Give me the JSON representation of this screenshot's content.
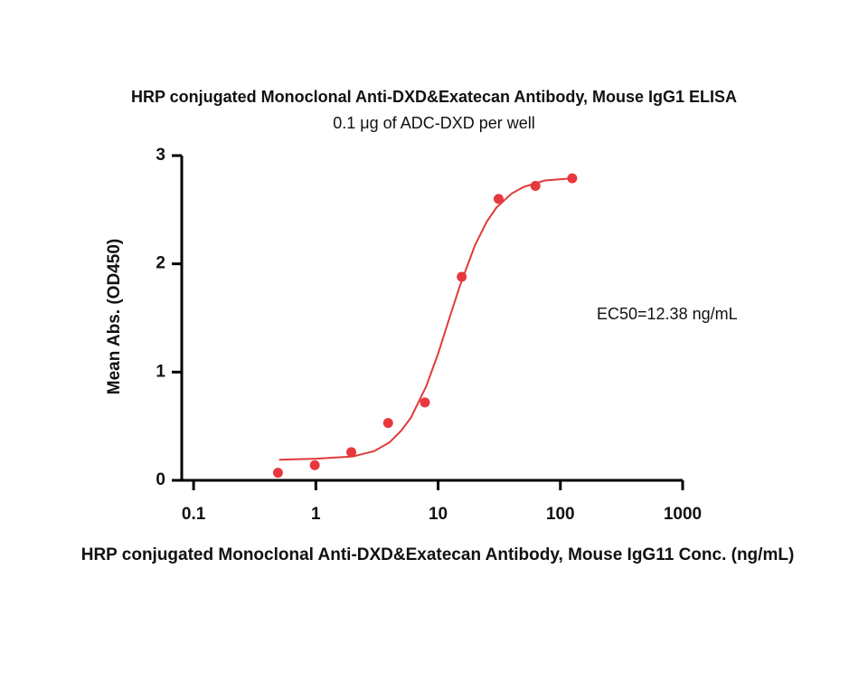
{
  "chart_data": {
    "type": "scatter",
    "title": "HRP conjugated Monoclonal Anti-DXD&Exatecan Antibody, Mouse IgG1 ELISA",
    "subtitle": "0.1 μg of ADC-DXD per well",
    "x_label": "HRP conjugated Monoclonal Anti-DXD&Exatecan Antibody, Mouse IgG11 Conc. (ng/mL)",
    "y_label": "Mean Abs. (OD450)",
    "annotation": "EC50=12.38 ng/mL",
    "x": [
      0.49,
      0.98,
      1.95,
      3.9,
      7.8,
      15.6,
      31.25,
      62.5,
      125
    ],
    "values": [
      0.07,
      0.14,
      0.26,
      0.53,
      0.72,
      1.88,
      2.6,
      2.72,
      2.79
    ],
    "color": "#e8383d",
    "fit": {
      "x": [
        0.5,
        1,
        2,
        3,
        4,
        5,
        6,
        8,
        10,
        12.38,
        15,
        20,
        25,
        30,
        40,
        50,
        75,
        125
      ],
      "values": [
        0.19,
        0.2,
        0.22,
        0.27,
        0.35,
        0.46,
        0.58,
        0.87,
        1.17,
        1.5,
        1.79,
        2.17,
        2.39,
        2.52,
        2.65,
        2.71,
        2.77,
        2.79
      ],
      "color": "#e03a3a"
    },
    "xscale": "log",
    "xlim": [
      0.08,
      1000
    ],
    "xticks": [
      0.1,
      1,
      10,
      100,
      1000
    ],
    "ylim": [
      0,
      3
    ],
    "yticks": [
      0,
      1,
      2,
      3
    ]
  }
}
